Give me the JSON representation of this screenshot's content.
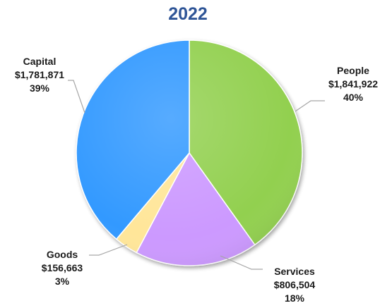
{
  "chart_data": {
    "type": "pie",
    "title": "2022",
    "slices": [
      {
        "name": "People",
        "value": 1841922,
        "value_label": "$1,841,922",
        "percent_label": "40%",
        "color": "#92d050"
      },
      {
        "name": "Services",
        "value": 806504,
        "value_label": "$806,504",
        "percent_label": "18%",
        "color": "#cc99ff"
      },
      {
        "name": "Goods",
        "value": 156663,
        "value_label": "$156,663",
        "percent_label": "3%",
        "color": "#ffe699"
      },
      {
        "name": "Capital",
        "value": 1781871,
        "value_label": "$1,781,871",
        "percent_label": "39%",
        "color": "#3399ff"
      }
    ],
    "start_angle": "12 o'clock",
    "direction": "clockwise",
    "legend": "none",
    "data_labels": "outside with leader lines"
  }
}
